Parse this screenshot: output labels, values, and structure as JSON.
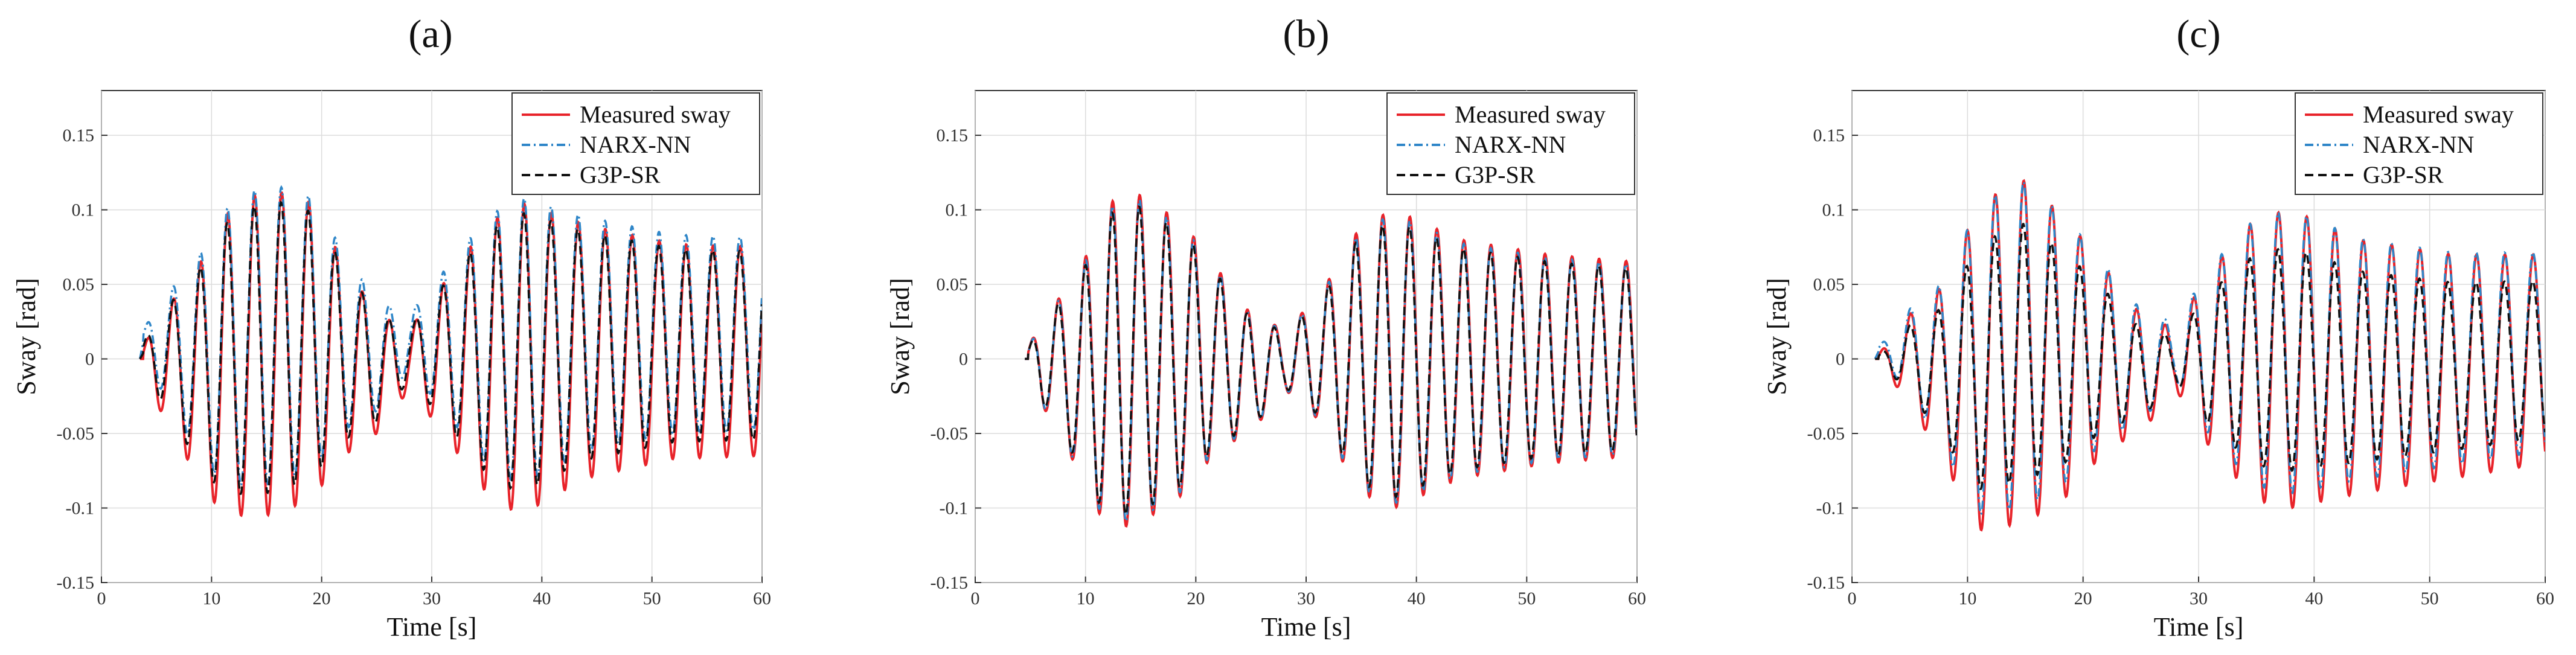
{
  "figure": {
    "panels": [
      "a",
      "b",
      "c"
    ]
  },
  "chart_data": [
    {
      "panel_label": "(a)",
      "type": "line",
      "xlabel": "Time [s]",
      "ylabel": "Sway [rad]",
      "xlim": [
        0,
        60
      ],
      "ylim": [
        -0.15,
        0.18
      ],
      "xticks": [
        "0",
        "10",
        "20",
        "30",
        "40",
        "50",
        "60"
      ],
      "yticks": [
        "-0.15",
        "-0.1",
        "-0.05",
        "0",
        "0.05",
        "0.1",
        "0.15"
      ],
      "grid": true,
      "legend_position": "top-right",
      "series": [
        {
          "name": "Measured sway",
          "color": "#e8232a",
          "style": "solid",
          "t_start": 3.5,
          "offset": 0.0,
          "amp_scale": 1.0,
          "phase": 0.0
        },
        {
          "name": "NARX-NN",
          "color": "#2f86c8",
          "style": "dashdot",
          "t_start": 3.5,
          "offset": 0.012,
          "amp_scale": 0.92,
          "phase": 0.05
        },
        {
          "name": "G3P-SR",
          "color": "#111111",
          "style": "dashed",
          "t_start": 3.5,
          "offset": 0.004,
          "amp_scale": 0.9,
          "phase": 0.12
        }
      ],
      "envelope": [
        {
          "t": 3.5,
          "a": 0.0,
          "c": 0.0
        },
        {
          "t": 5,
          "a": 0.03,
          "c": 0.0
        },
        {
          "t": 8,
          "a": 0.06,
          "c": -0.01
        },
        {
          "t": 11,
          "a": 0.1,
          "c": -0.005
        },
        {
          "t": 15,
          "a": 0.11,
          "c": 0.005
        },
        {
          "t": 19,
          "a": 0.1,
          "c": 0.005
        },
        {
          "t": 22,
          "a": 0.065,
          "c": 0.0
        },
        {
          "t": 25,
          "a": 0.04,
          "c": -0.01
        },
        {
          "t": 28,
          "a": 0.02,
          "c": 0.0
        },
        {
          "t": 31,
          "a": 0.05,
          "c": 0.0
        },
        {
          "t": 35,
          "a": 0.09,
          "c": 0.0
        },
        {
          "t": 38,
          "a": 0.105,
          "c": 0.0
        },
        {
          "t": 44,
          "a": 0.085,
          "c": 0.005
        },
        {
          "t": 52,
          "a": 0.072,
          "c": 0.005
        },
        {
          "t": 60,
          "a": 0.07,
          "c": 0.005
        }
      ],
      "period": 2.45
    },
    {
      "panel_label": "(b)",
      "type": "line",
      "xlabel": "Time [s]",
      "ylabel": "Sway [rad]",
      "xlim": [
        0,
        60
      ],
      "ylim": [
        -0.15,
        0.18
      ],
      "xticks": [
        "0",
        "10",
        "20",
        "30",
        "40",
        "50",
        "60"
      ],
      "yticks": [
        "-0.15",
        "-0.1",
        "-0.05",
        "0",
        "0.05",
        "0.1",
        "0.15"
      ],
      "grid": true,
      "legend_position": "top-right",
      "series": [
        {
          "name": "Measured sway",
          "color": "#e8232a",
          "style": "solid",
          "t_start": 4.5,
          "offset": 0.0,
          "amp_scale": 1.0,
          "phase": 0.0
        },
        {
          "name": "NARX-NN",
          "color": "#2f86c8",
          "style": "dashdot",
          "t_start": 4.5,
          "offset": 0.0,
          "amp_scale": 0.97,
          "phase": 0.04
        },
        {
          "name": "G3P-SR",
          "color": "#111111",
          "style": "dashed",
          "t_start": 4.5,
          "offset": 0.0,
          "amp_scale": 0.93,
          "phase": 0.1
        }
      ],
      "envelope": [
        {
          "t": 4.5,
          "a": 0.0,
          "c": 0.0
        },
        {
          "t": 6,
          "a": 0.03,
          "c": 0.0
        },
        {
          "t": 9,
          "a": 0.06,
          "c": -0.01
        },
        {
          "t": 12,
          "a": 0.11,
          "c": -0.005
        },
        {
          "t": 15,
          "a": 0.11,
          "c": 0.0
        },
        {
          "t": 19,
          "a": 0.09,
          "c": 0.0
        },
        {
          "t": 22,
          "a": 0.06,
          "c": 0.0
        },
        {
          "t": 25,
          "a": 0.04,
          "c": -0.01
        },
        {
          "t": 28,
          "a": 0.02,
          "c": 0.0
        },
        {
          "t": 31,
          "a": 0.04,
          "c": 0.0
        },
        {
          "t": 35,
          "a": 0.09,
          "c": 0.0
        },
        {
          "t": 38,
          "a": 0.1,
          "c": 0.0
        },
        {
          "t": 44,
          "a": 0.08,
          "c": 0.0
        },
        {
          "t": 52,
          "a": 0.07,
          "c": 0.0
        },
        {
          "t": 60,
          "a": 0.065,
          "c": 0.0
        }
      ],
      "period": 2.45
    },
    {
      "panel_label": "(c)",
      "type": "line",
      "xlabel": "Time [s]",
      "ylabel": "Sway [rad]",
      "xlim": [
        0,
        60
      ],
      "ylim": [
        -0.15,
        0.18
      ],
      "xticks": [
        "0",
        "10",
        "20",
        "30",
        "40",
        "50",
        "60"
      ],
      "yticks": [
        "-0.15",
        "-0.1",
        "-0.05",
        "0",
        "0.05",
        "0.1",
        "0.15"
      ],
      "grid": true,
      "legend_position": "top-right",
      "series": [
        {
          "name": "Measured sway",
          "color": "#e8232a",
          "style": "solid",
          "t_start": 2.0,
          "offset": 0.0,
          "amp_scale": 1.0,
          "phase": 0.0
        },
        {
          "name": "NARX-NN",
          "color": "#2f86c8",
          "style": "dashdot",
          "t_start": 2.0,
          "offset": 0.005,
          "amp_scale": 0.95,
          "phase": 0.06
        },
        {
          "name": "G3P-SR",
          "color": "#111111",
          "style": "dashed",
          "t_start": 2.0,
          "offset": 0.0,
          "amp_scale": 0.75,
          "phase": 0.12
        }
      ],
      "envelope": [
        {
          "t": 2.0,
          "a": 0.0,
          "c": 0.0
        },
        {
          "t": 5,
          "a": 0.03,
          "c": 0.0
        },
        {
          "t": 8,
          "a": 0.06,
          "c": -0.01
        },
        {
          "t": 11,
          "a": 0.11,
          "c": -0.005
        },
        {
          "t": 15,
          "a": 0.115,
          "c": 0.005
        },
        {
          "t": 19,
          "a": 0.09,
          "c": 0.0
        },
        {
          "t": 22,
          "a": 0.06,
          "c": 0.0
        },
        {
          "t": 25,
          "a": 0.04,
          "c": -0.01
        },
        {
          "t": 28,
          "a": 0.02,
          "c": 0.0
        },
        {
          "t": 31,
          "a": 0.06,
          "c": 0.0
        },
        {
          "t": 35,
          "a": 0.095,
          "c": 0.0
        },
        {
          "t": 38,
          "a": 0.1,
          "c": 0.0
        },
        {
          "t": 44,
          "a": 0.085,
          "c": -0.005
        },
        {
          "t": 52,
          "a": 0.075,
          "c": -0.005
        },
        {
          "t": 60,
          "a": 0.07,
          "c": 0.0
        }
      ],
      "period": 2.45
    }
  ]
}
